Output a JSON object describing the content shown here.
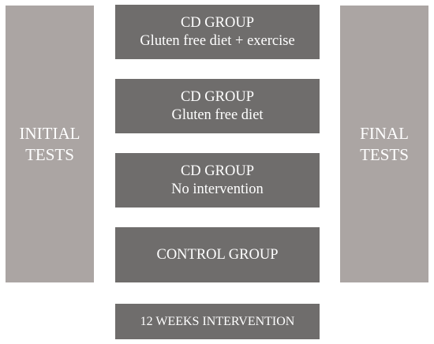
{
  "initial_tests": {
    "line1": "INITIAL",
    "line2": "TESTS"
  },
  "final_tests": {
    "line1": "FINAL",
    "line2": "TESTS"
  },
  "groups": [
    {
      "title": "CD GROUP",
      "subtitle": "Gluten free diet + exercise"
    },
    {
      "title": "CD GROUP",
      "subtitle": "Gluten free diet"
    },
    {
      "title": "CD GROUP",
      "subtitle": "No intervention"
    },
    {
      "title": "CONTROL GROUP"
    }
  ],
  "duration_label": "12 WEEKS INTERVENTION",
  "colors": {
    "side_box": "#aba5a3",
    "group_box": "#6f6d6c",
    "text": "#ffffff"
  }
}
